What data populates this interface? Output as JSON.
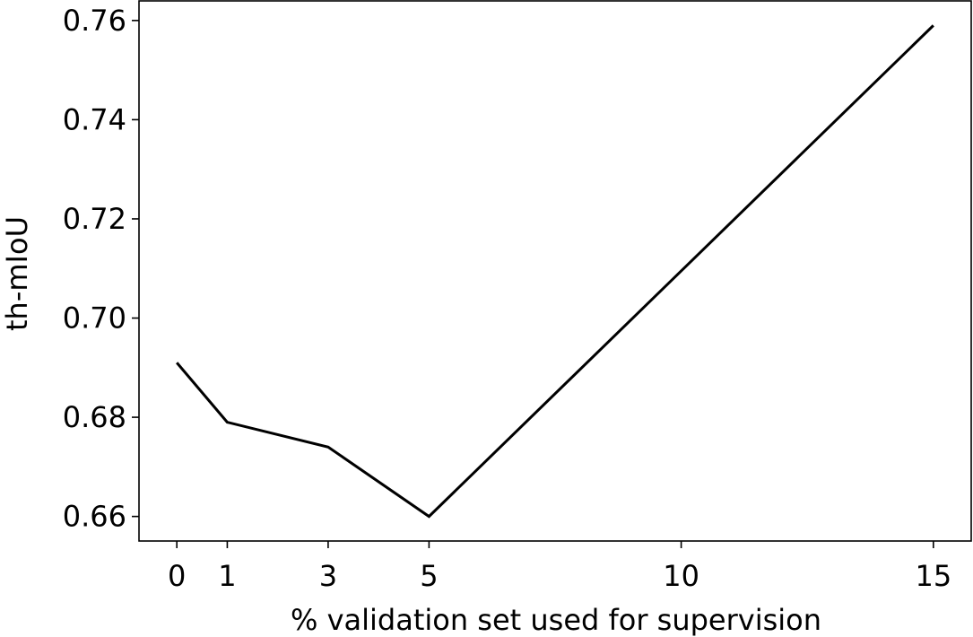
{
  "chart_data": {
    "type": "line",
    "x_label": "% validation set used for supervision",
    "y_label": "th-mIoU",
    "x": [
      0,
      1,
      3,
      5,
      15
    ],
    "series": [
      {
        "color": "#000000",
        "values": [
          0.691,
          0.679,
          0.674,
          0.66,
          0.759
        ]
      }
    ],
    "xlim": [
      -0.75,
      15.75
    ],
    "xticks": [
      0,
      1,
      3,
      5,
      10,
      15
    ],
    "ylim": [
      0.65505,
      0.76395
    ],
    "yticks": [
      0.66,
      0.68,
      {
        "value": 0.7,
        "label": "0.70"
      },
      0.72,
      0.74,
      0.76
    ]
  }
}
